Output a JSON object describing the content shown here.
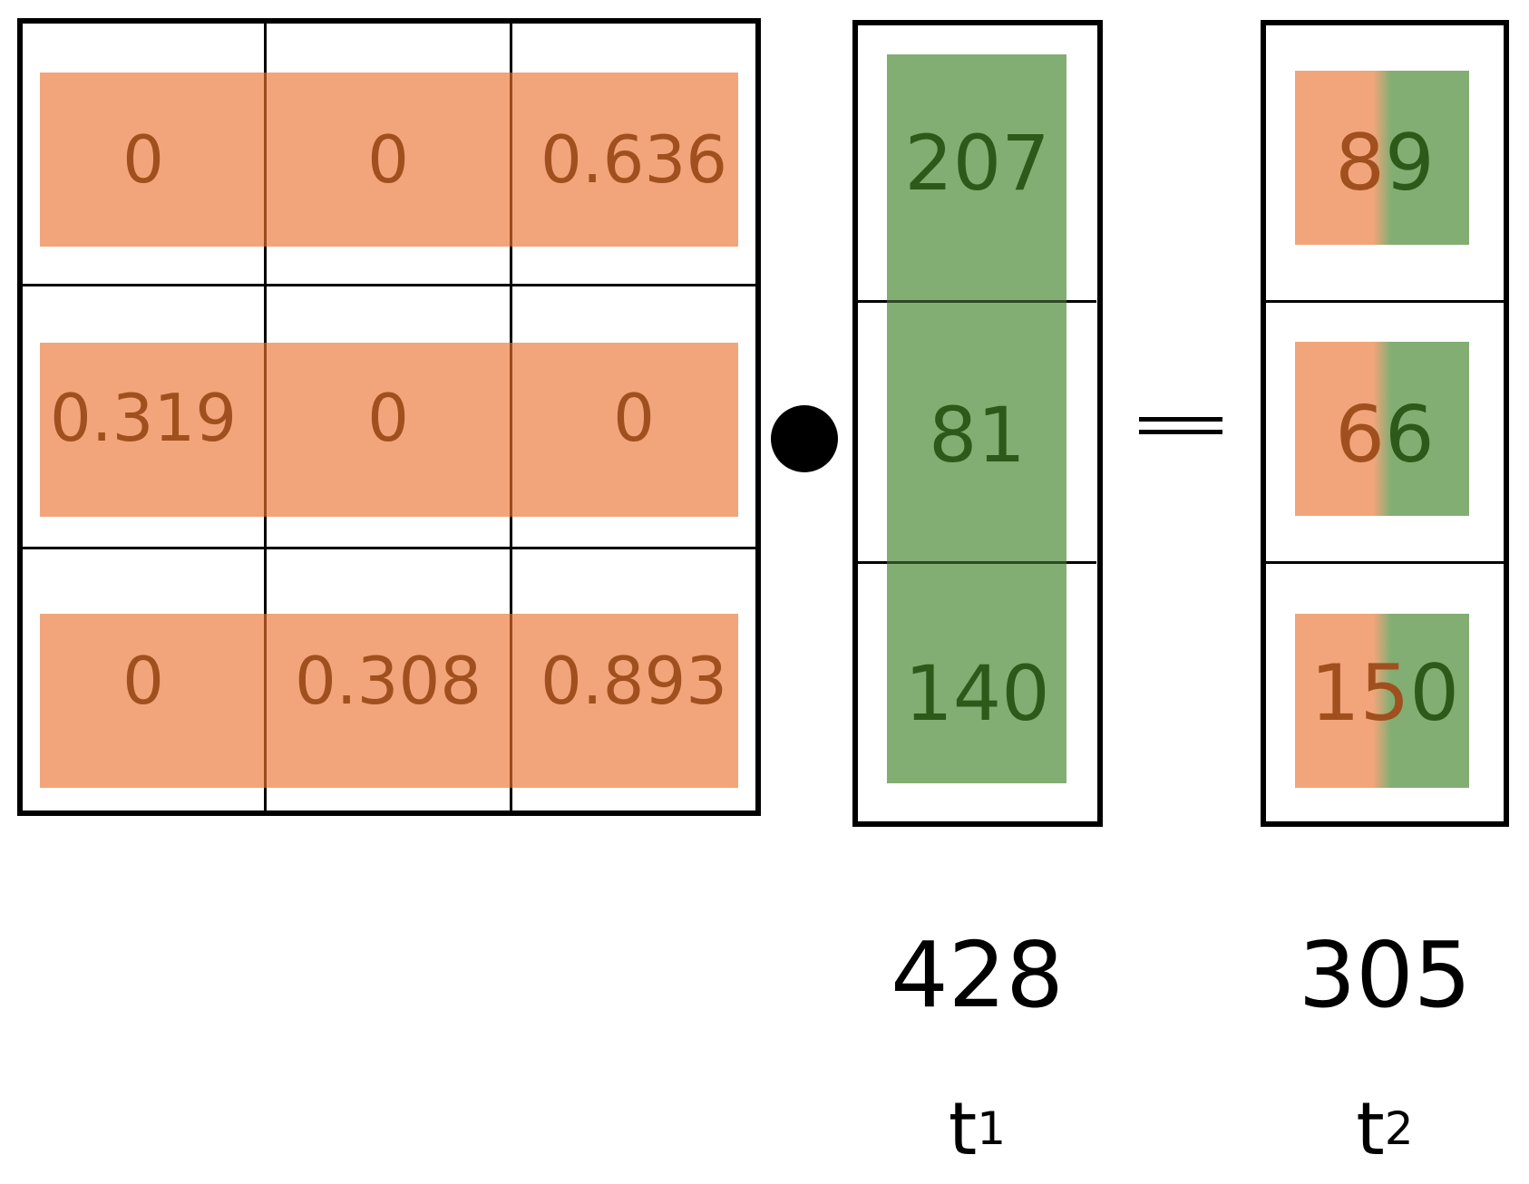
{
  "matrix": {
    "rows": [
      [
        "0",
        "0",
        "0.636"
      ],
      [
        "0.319",
        "0",
        "0"
      ],
      [
        "0",
        "0.308",
        "0.893"
      ]
    ]
  },
  "operator": {
    "dot": "dot-product"
  },
  "vector": {
    "values": [
      "207",
      "81",
      "140"
    ],
    "total": "428",
    "label_base": "t",
    "label_sub": "1"
  },
  "result": {
    "values": [
      {
        "left": "8",
        "right": "9"
      },
      {
        "left": "6",
        "right": "6"
      },
      {
        "left": "15",
        "right": "0"
      }
    ],
    "total": "305",
    "label_base": "t",
    "label_sub": "2"
  },
  "colors": {
    "matrix_band": "#f2a57a",
    "matrix_text": "#a0501e",
    "vector_band": "#82ae73",
    "vector_text": "#2d5a1a"
  }
}
